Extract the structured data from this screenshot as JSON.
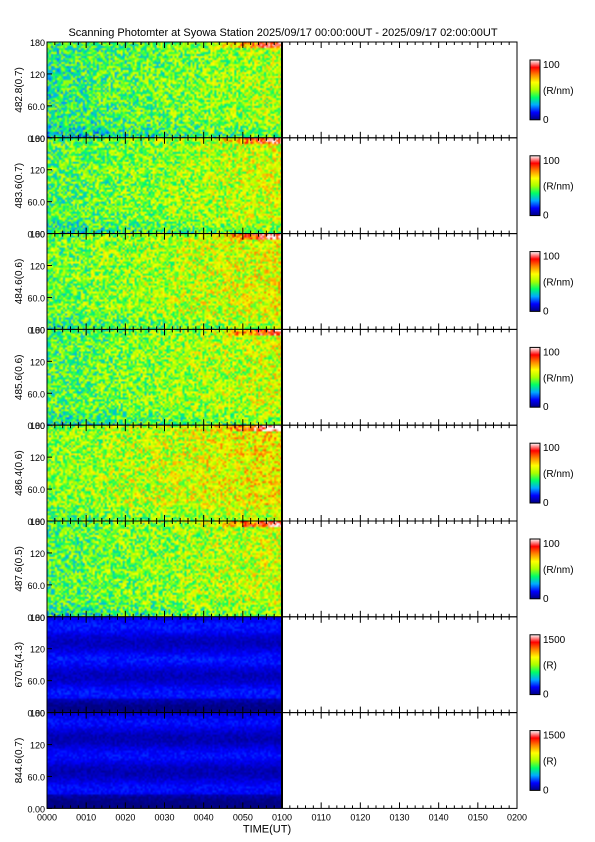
{
  "title": "Scanning Photomter at Syowa Station 2025/09/17 00:00:00UT - 2025/09/17 02:00:00UT",
  "chart_data": {
    "type": "heatmap",
    "title": "Scanning Photomter at Syowa Station 2025/09/17 00:00:00UT - 2025/09/17 02:00:00UT",
    "xlabel": "TIME(UT)",
    "x_tick_labels": [
      "0000",
      "0010",
      "0020",
      "0030",
      "0040",
      "0050",
      "0100",
      "0110",
      "0120",
      "0130",
      "0140",
      "0150",
      "0200"
    ],
    "xlim_minutes": [
      0,
      120
    ],
    "data_end_minute": 60,
    "y_tick_labels": [
      "0.00",
      "60.0",
      "120",
      "180"
    ],
    "ylim": [
      0,
      180
    ],
    "colormap": [
      "#000080",
      "#0000ff",
      "#00aaff",
      "#00ff66",
      "#aaff00",
      "#ffff00",
      "#ff8800",
      "#ff0000",
      "#ffffff"
    ],
    "panels": [
      {
        "ylabel": "482.8(0.7)",
        "cbar_max": "100",
        "cbar_min": "0",
        "cbar_unit": "(R/nm)",
        "level": 0.38
      },
      {
        "ylabel": "483.6(0.7)",
        "cbar_max": "100",
        "cbar_min": "0",
        "cbar_unit": "(R/nm)",
        "level": 0.42
      },
      {
        "ylabel": "484.6(0.6)",
        "cbar_max": "100",
        "cbar_min": "0",
        "cbar_unit": "(R/nm)",
        "level": 0.45
      },
      {
        "ylabel": "485.6(0.6)",
        "cbar_max": "100",
        "cbar_min": "0",
        "cbar_unit": "(R/nm)",
        "level": 0.42
      },
      {
        "ylabel": "486.4(0.6)",
        "cbar_max": "100",
        "cbar_min": "0",
        "cbar_unit": "(R/nm)",
        "level": 0.48
      },
      {
        "ylabel": "487.6(0.5)",
        "cbar_max": "100",
        "cbar_min": "0",
        "cbar_unit": "(R/nm)",
        "level": 0.42
      },
      {
        "ylabel": "670.5(4.3)",
        "cbar_max": "1500",
        "cbar_min": "0",
        "cbar_unit": "(R)",
        "level": 0.1
      },
      {
        "ylabel": "844.6(0.7)",
        "cbar_max": "1500",
        "cbar_min": "0",
        "cbar_unit": "(R)",
        "level": 0.09
      }
    ]
  }
}
